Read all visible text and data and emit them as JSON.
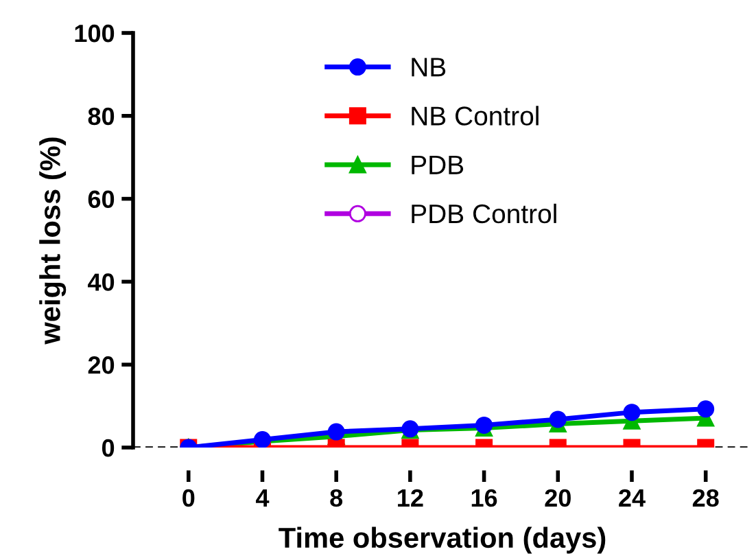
{
  "chart_data": {
    "type": "line",
    "xlabel": "Time observation (days)",
    "ylabel": "weight loss (%)",
    "x": [
      0,
      4,
      8,
      12,
      16,
      20,
      24,
      28
    ],
    "series": [
      {
        "name": "NB",
        "color": "#0000ff",
        "marker": "circle",
        "values": [
          0,
          1.9,
          3.8,
          4.5,
          5.4,
          6.8,
          8.5,
          9.3
        ]
      },
      {
        "name": "NB Control",
        "color": "#ff0000",
        "marker": "square",
        "values": [
          0,
          0,
          0,
          0,
          0,
          0,
          0,
          0
        ]
      },
      {
        "name": "PDB",
        "color": "#00b800",
        "marker": "triangle",
        "values": [
          0,
          1.5,
          2.7,
          4.2,
          4.7,
          5.7,
          6.4,
          7.1
        ]
      },
      {
        "name": "PDB Control",
        "color": "#b000e0",
        "marker": "circle_open",
        "values": [
          null,
          null,
          null,
          null,
          null,
          null,
          null,
          null
        ]
      }
    ],
    "xlim": [
      -3,
      30.5
    ],
    "xticks": [
      0,
      4,
      8,
      12,
      16,
      20,
      24,
      28
    ],
    "ylim": [
      0,
      100
    ],
    "yticks": [
      0,
      20,
      40,
      60,
      80,
      100
    ],
    "ref_lines": [
      {
        "axis": "y",
        "value": 0,
        "color": "#000000",
        "line_style": "dashed"
      }
    ],
    "grid": false,
    "legend": "top"
  }
}
